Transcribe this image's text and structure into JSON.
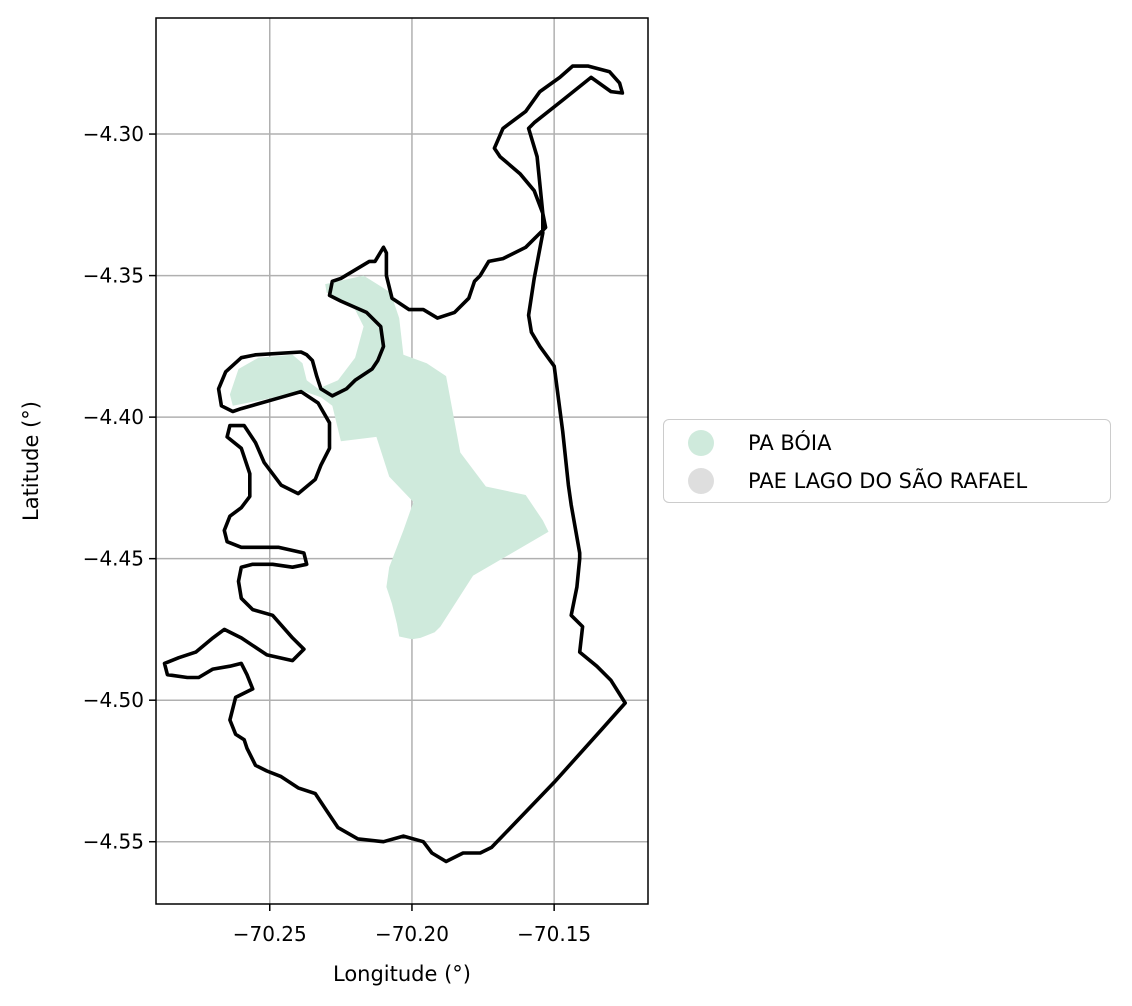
{
  "chart_data": {
    "type": "map",
    "xlabel": "Longitude (°)",
    "ylabel": "Latitude (°)",
    "xlim": [
      -70.29,
      -70.117
    ],
    "ylim": [
      -4.572,
      -4.259
    ],
    "x_ticks": [
      -70.25,
      -70.2,
      -70.15
    ],
    "x_tick_labels": [
      "−70.25",
      "−70.20",
      "−70.15"
    ],
    "y_ticks": [
      -4.3,
      -4.35,
      -4.4,
      -4.45,
      -4.5,
      -4.55
    ],
    "y_tick_labels": [
      "−4.30",
      "−4.35",
      "−4.40",
      "−4.45",
      "−4.50",
      "−4.55"
    ],
    "grid": true,
    "legend_position": "center-right outside",
    "legend": [
      {
        "label": "PA BÓIA",
        "color": "#cfeadc"
      },
      {
        "label": "PAE LAGO DO SÃO RAFAEL",
        "color": "#dedede"
      }
    ],
    "outline_color": "#000000",
    "pa_boia_polygon": [
      [
        -70.2305,
        -4.353
      ],
      [
        -70.217,
        -4.35
      ],
      [
        -70.2075,
        -4.356
      ],
      [
        -70.2045,
        -4.365
      ],
      [
        -70.203,
        -4.378
      ],
      [
        -70.1948,
        -4.381
      ],
      [
        -70.188,
        -4.3855
      ],
      [
        -70.183,
        -4.4125
      ],
      [
        -70.174,
        -4.4245
      ],
      [
        -70.16,
        -4.4275
      ],
      [
        -70.154,
        -4.4365
      ],
      [
        -70.152,
        -4.4405
      ],
      [
        -70.1785,
        -4.456
      ],
      [
        -70.19,
        -4.474
      ],
      [
        -70.192,
        -4.476
      ],
      [
        -70.197,
        -4.478
      ],
      [
        -70.2,
        -4.4785
      ],
      [
        -70.2045,
        -4.4775
      ],
      [
        -70.2053,
        -4.473
      ],
      [
        -70.207,
        -4.466
      ],
      [
        -70.209,
        -4.46
      ],
      [
        -70.208,
        -4.453
      ],
      [
        -70.203,
        -4.44
      ],
      [
        -70.1995,
        -4.43
      ],
      [
        -70.208,
        -4.421
      ],
      [
        -70.2125,
        -4.407
      ],
      [
        -70.225,
        -4.4085
      ],
      [
        -70.228,
        -4.396
      ],
      [
        -70.232,
        -4.393
      ],
      [
        -70.239,
        -4.3905
      ],
      [
        -70.248,
        -4.393
      ],
      [
        -70.263,
        -4.396
      ],
      [
        -70.264,
        -4.392
      ],
      [
        -70.261,
        -4.383
      ],
      [
        -70.254,
        -4.379
      ],
      [
        -70.242,
        -4.378
      ],
      [
        -70.2385,
        -4.381
      ],
      [
        -70.237,
        -4.387
      ],
      [
        -70.233,
        -4.39
      ],
      [
        -70.226,
        -4.387
      ],
      [
        -70.22,
        -4.379
      ],
      [
        -70.217,
        -4.368
      ],
      [
        -70.22,
        -4.362
      ],
      [
        -70.23,
        -4.356
      ]
    ],
    "pae_lago_do_sao_rafael_outline": [
      [
        -70.126,
        -4.2855
      ],
      [
        -70.127,
        -4.282
      ],
      [
        -70.1305,
        -4.278
      ],
      [
        -70.138,
        -4.276
      ],
      [
        -70.1435,
        -4.276
      ],
      [
        -70.148,
        -4.28
      ],
      [
        -70.155,
        -4.285
      ],
      [
        -70.16,
        -4.292
      ],
      [
        -70.168,
        -4.298
      ],
      [
        -70.171,
        -4.305
      ],
      [
        -70.169,
        -4.308
      ],
      [
        -70.162,
        -4.314
      ],
      [
        -70.157,
        -4.32
      ],
      [
        -70.154,
        -4.328
      ],
      [
        -70.153,
        -4.333
      ],
      [
        -70.16,
        -4.34
      ],
      [
        -70.168,
        -4.344
      ],
      [
        -70.173,
        -4.345
      ],
      [
        -70.176,
        -4.35
      ],
      [
        -70.178,
        -4.352
      ],
      [
        -70.18,
        -4.358
      ],
      [
        -70.185,
        -4.363
      ],
      [
        -70.191,
        -4.365
      ],
      [
        -70.196,
        -4.362
      ],
      [
        -70.201,
        -4.362
      ],
      [
        -70.207,
        -4.358
      ],
      [
        -70.209,
        -4.35
      ],
      [
        -70.209,
        -4.342
      ],
      [
        -70.21,
        -4.34
      ],
      [
        -70.213,
        -4.345
      ],
      [
        -70.215,
        -4.345
      ],
      [
        -70.225,
        -4.351
      ],
      [
        -70.228,
        -4.352
      ],
      [
        -70.229,
        -4.357
      ],
      [
        -70.225,
        -4.359
      ],
      [
        -70.216,
        -4.363
      ],
      [
        -70.211,
        -4.368
      ],
      [
        -70.21,
        -4.375
      ],
      [
        -70.212,
        -4.38
      ],
      [
        -70.214,
        -4.383
      ],
      [
        -70.22,
        -4.387
      ],
      [
        -70.223,
        -4.39
      ],
      [
        -70.228,
        -4.3925
      ],
      [
        -70.232,
        -4.39
      ],
      [
        -70.2335,
        -4.3855
      ],
      [
        -70.235,
        -4.38
      ],
      [
        -70.237,
        -4.378
      ],
      [
        -70.239,
        -4.377
      ],
      [
        -70.255,
        -4.378
      ],
      [
        -70.26,
        -4.379
      ],
      [
        -70.2655,
        -4.384
      ],
      [
        -70.268,
        -4.39
      ],
      [
        -70.267,
        -4.396
      ],
      [
        -70.263,
        -4.398
      ],
      [
        -70.26,
        -4.397
      ],
      [
        -70.246,
        -4.393
      ],
      [
        -70.239,
        -4.391
      ],
      [
        -70.233,
        -4.395
      ],
      [
        -70.229,
        -4.402
      ],
      [
        -70.229,
        -4.411
      ],
      [
        -70.232,
        -4.417
      ],
      [
        -70.234,
        -4.422
      ],
      [
        -70.24,
        -4.427
      ],
      [
        -70.246,
        -4.424
      ],
      [
        -70.252,
        -4.416
      ],
      [
        -70.255,
        -4.409
      ],
      [
        -70.259,
        -4.403
      ],
      [
        -70.264,
        -4.403
      ],
      [
        -70.265,
        -4.407
      ],
      [
        -70.26,
        -4.411
      ],
      [
        -70.257,
        -4.42
      ],
      [
        -70.257,
        -4.428
      ],
      [
        -70.26,
        -4.432
      ],
      [
        -70.264,
        -4.435
      ],
      [
        -70.266,
        -4.44
      ],
      [
        -70.265,
        -4.444
      ],
      [
        -70.26,
        -4.446
      ],
      [
        -70.247,
        -4.446
      ],
      [
        -70.238,
        -4.448
      ],
      [
        -70.237,
        -4.452
      ],
      [
        -70.242,
        -4.453
      ],
      [
        -70.249,
        -4.452
      ],
      [
        -70.256,
        -4.452
      ],
      [
        -70.26,
        -4.453
      ],
      [
        -70.261,
        -4.458
      ],
      [
        -70.26,
        -4.464
      ],
      [
        -70.256,
        -4.468
      ],
      [
        -70.249,
        -4.47
      ],
      [
        -70.242,
        -4.478
      ],
      [
        -70.238,
        -4.482
      ],
      [
        -70.242,
        -4.486
      ],
      [
        -70.251,
        -4.484
      ],
      [
        -70.26,
        -4.478
      ],
      [
        -70.266,
        -4.475
      ],
      [
        -70.27,
        -4.478
      ],
      [
        -70.276,
        -4.483
      ],
      [
        -70.282,
        -4.485
      ],
      [
        -70.287,
        -4.487
      ],
      [
        -70.286,
        -4.491
      ],
      [
        -70.279,
        -4.492
      ],
      [
        -70.275,
        -4.492
      ],
      [
        -70.27,
        -4.489
      ],
      [
        -70.264,
        -4.488
      ],
      [
        -70.26,
        -4.487
      ],
      [
        -70.258,
        -4.491
      ],
      [
        -70.256,
        -4.496
      ],
      [
        -70.262,
        -4.499
      ],
      [
        -70.264,
        -4.507
      ],
      [
        -70.262,
        -4.512
      ],
      [
        -70.259,
        -4.514
      ],
      [
        -70.258,
        -4.517
      ],
      [
        -70.255,
        -4.523
      ],
      [
        -70.251,
        -4.525
      ],
      [
        -70.246,
        -4.527
      ],
      [
        -70.24,
        -4.531
      ],
      [
        -70.234,
        -4.533
      ],
      [
        -70.23,
        -4.539
      ],
      [
        -70.226,
        -4.545
      ],
      [
        -70.219,
        -4.549
      ],
      [
        -70.21,
        -4.55
      ],
      [
        -70.203,
        -4.548
      ],
      [
        -70.196,
        -4.55
      ],
      [
        -70.193,
        -4.554
      ],
      [
        -70.188,
        -4.557
      ],
      [
        -70.182,
        -4.554
      ],
      [
        -70.176,
        -4.554
      ],
      [
        -70.172,
        -4.552
      ],
      [
        -70.15,
        -4.529
      ],
      [
        -70.133,
        -4.51
      ],
      [
        -70.125,
        -4.501
      ],
      [
        -70.13,
        -4.493
      ],
      [
        -70.135,
        -4.488
      ],
      [
        -70.141,
        -4.483
      ],
      [
        -70.14,
        -4.474
      ],
      [
        -70.144,
        -4.47
      ],
      [
        -70.142,
        -4.46
      ],
      [
        -70.141,
        -4.45
      ],
      [
        -70.141,
        -4.448
      ],
      [
        -70.144,
        -4.431
      ],
      [
        -70.145,
        -4.424
      ],
      [
        -70.147,
        -4.405
      ],
      [
        -70.15,
        -4.382
      ],
      [
        -70.155,
        -4.375
      ],
      [
        -70.158,
        -4.37
      ],
      [
        -70.159,
        -4.364
      ],
      [
        -70.157,
        -4.351
      ],
      [
        -70.154,
        -4.335
      ],
      [
        -70.154,
        -4.328
      ],
      [
        -70.156,
        -4.308
      ],
      [
        -70.159,
        -4.298
      ],
      [
        -70.157,
        -4.296
      ],
      [
        -70.147,
        -4.288
      ],
      [
        -70.137,
        -4.28
      ],
      [
        -70.13,
        -4.285
      ],
      [
        -70.126,
        -4.2855
      ]
    ]
  }
}
